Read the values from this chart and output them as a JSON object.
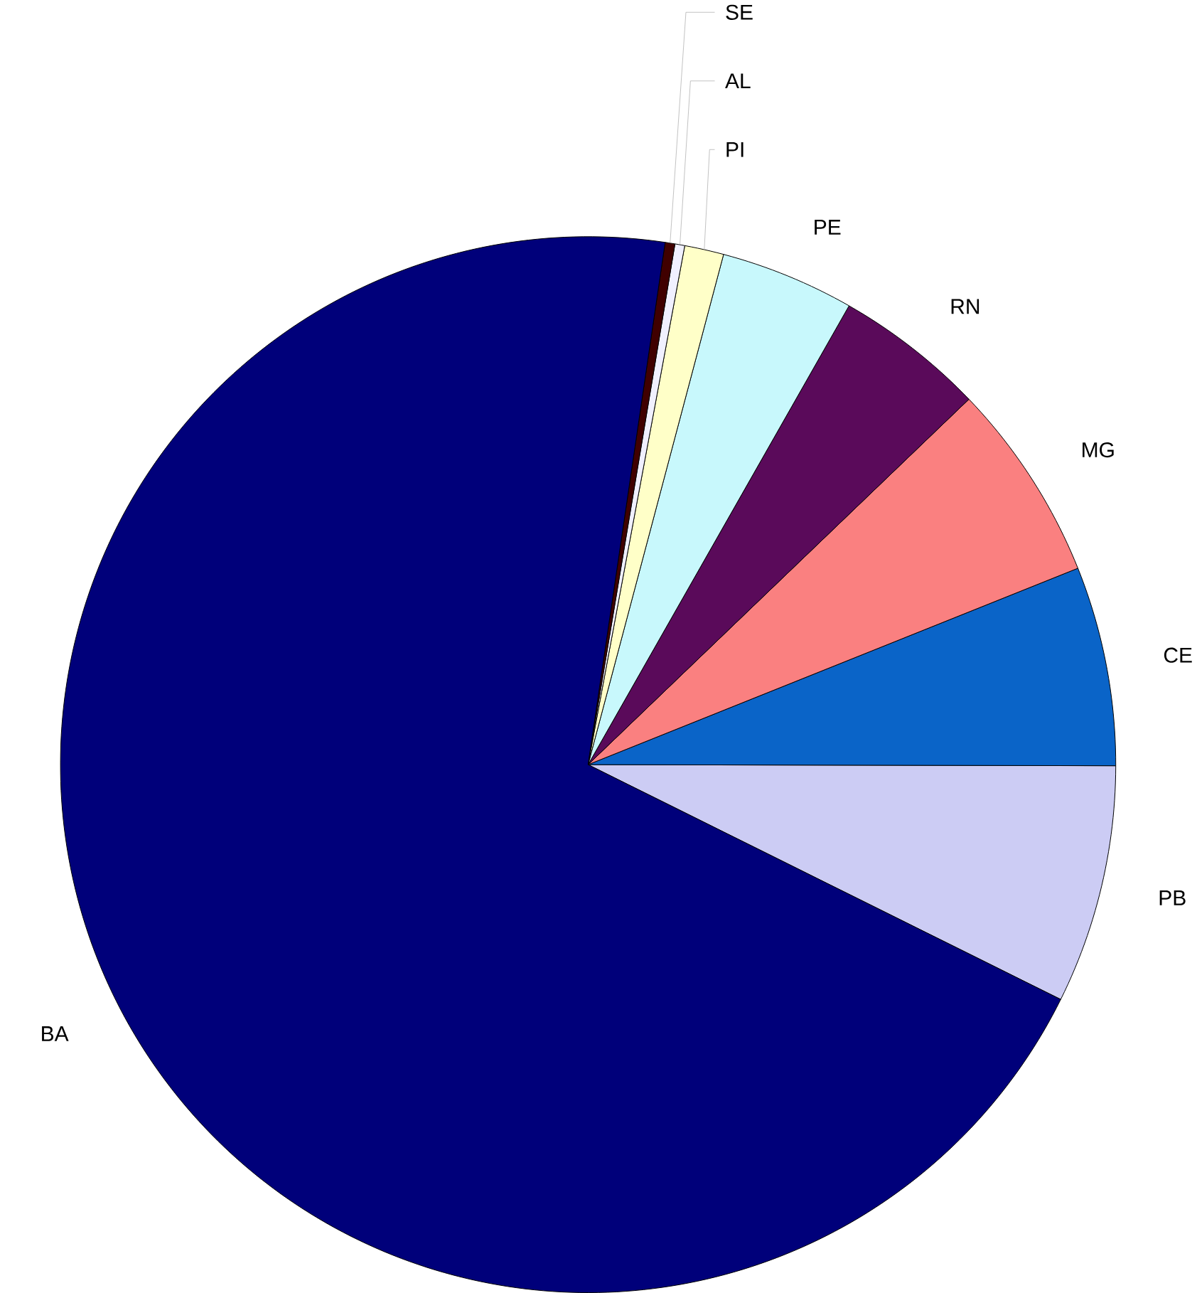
{
  "chart_data": {
    "type": "pie",
    "categories": [
      "PB",
      "CE",
      "MG",
      "RN",
      "PE",
      "PI",
      "AL",
      "SE",
      "BA"
    ],
    "values": [
      7.3,
      6.1,
      6.1,
      4.6,
      4.1,
      1.2,
      0.3,
      0.3,
      70.0
    ],
    "colors": [
      "#ccccf4",
      "#0a64c8",
      "#fa8080",
      "#5a0a5a",
      "#c8f8fc",
      "#ffffc8",
      "#f0f0ff",
      "#400000",
      "#00007a"
    ]
  }
}
